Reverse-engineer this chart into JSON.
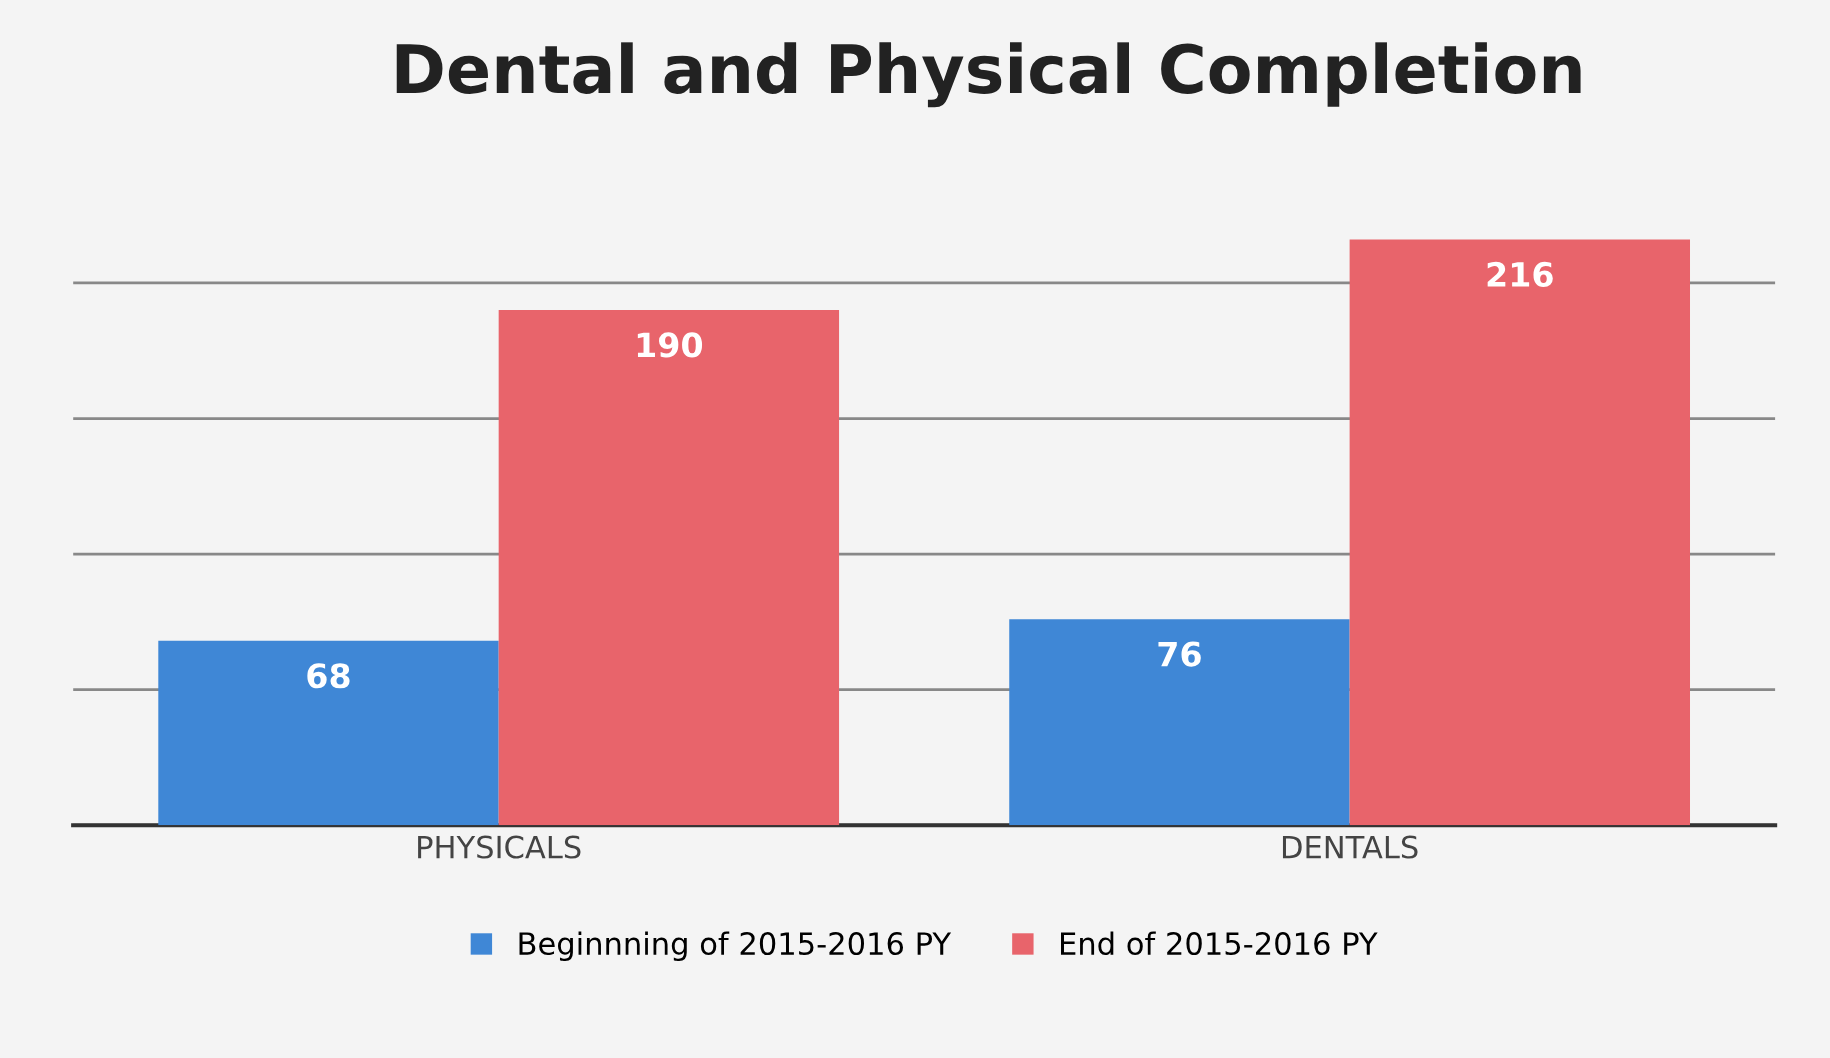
{
  "chart_data": {
    "type": "bar",
    "title": "Dental and Physical Completion",
    "categories": [
      "PHYSICALS",
      "DENTALS"
    ],
    "series": [
      {
        "name": "Beginnning of 2015-2016 PY",
        "color": "#3f87d6",
        "values": [
          68,
          76
        ]
      },
      {
        "name": "End of 2015-2016 PY",
        "color": "#e8646b",
        "values": [
          190,
          216
        ]
      }
    ],
    "yticks": [
      0,
      50,
      100,
      150,
      200
    ],
    "grid": "y",
    "tick_labels": "x",
    "data_labels": true,
    "legend": "bottom"
  }
}
